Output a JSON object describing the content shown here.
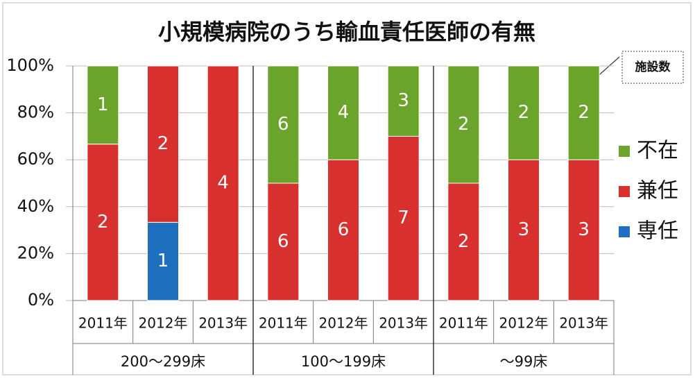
{
  "chart_data": {
    "type": "bar",
    "stacking": "percent",
    "title": "小規模病院のうち輸血責任医師の有無",
    "annotation": "施設数",
    "groups": [
      "200～299床",
      "100～199床",
      "～99床"
    ],
    "categories": [
      "2011年",
      "2012年",
      "2013年",
      "2011年",
      "2012年",
      "2013年",
      "2011年",
      "2012年",
      "2013年"
    ],
    "series": [
      {
        "name": "専任",
        "color": "#1f6fc0",
        "values": [
          null,
          1,
          null,
          null,
          null,
          null,
          null,
          null,
          null
        ]
      },
      {
        "name": "兼任",
        "color": "#d8302e",
        "values": [
          2,
          2,
          4,
          6,
          6,
          7,
          2,
          3,
          3
        ]
      },
      {
        "name": "不在",
        "color": "#6ba42a",
        "values": [
          1,
          null,
          null,
          6,
          4,
          3,
          2,
          2,
          2
        ]
      }
    ],
    "ylim": [
      0,
      100
    ],
    "yticks": [
      {
        "value": 0,
        "label": "0%"
      },
      {
        "value": 20,
        "label": "20%"
      },
      {
        "value": 40,
        "label": "40%"
      },
      {
        "value": 60,
        "label": "60%"
      },
      {
        "value": 80,
        "label": "80%"
      },
      {
        "value": 100,
        "label": "100%"
      }
    ],
    "grid": true,
    "legend": "right"
  }
}
